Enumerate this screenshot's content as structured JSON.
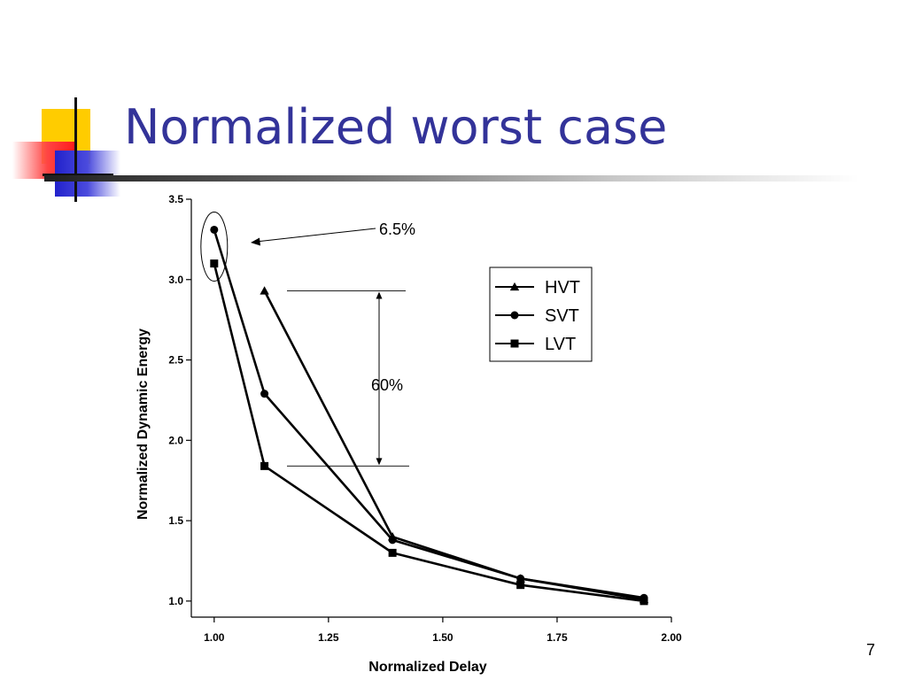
{
  "slide": {
    "title": "Normalized worst case",
    "page_number": "7"
  },
  "colors": {
    "title": "#333399",
    "deco_yellow": "#ffcc00",
    "deco_red": "#ff1a1a",
    "deco_blue": "#2222cc"
  },
  "chart_data": {
    "type": "line",
    "title": "",
    "xlabel": "Normalized Delay",
    "ylabel": "Normalized Dynamic Energy",
    "xlim": [
      0.95,
      2.0
    ],
    "ylim": [
      0.9,
      3.5
    ],
    "x_ticks": [
      "1.00",
      "1.25",
      "1.50",
      "1.75",
      "2.00"
    ],
    "y_ticks": [
      "1.0",
      "1.5",
      "2.0",
      "2.5",
      "3.0",
      "3.5"
    ],
    "grid": false,
    "legend_position": "top-right",
    "series": [
      {
        "name": "HVT",
        "marker": "triangle",
        "x": [
          1.11,
          1.39,
          1.67,
          1.94
        ],
        "y": [
          2.93,
          1.4,
          1.14,
          1.01
        ]
      },
      {
        "name": "SVT",
        "marker": "circle",
        "x": [
          1.0,
          1.11,
          1.39,
          1.67,
          1.94
        ],
        "y": [
          3.31,
          2.29,
          1.38,
          1.14,
          1.02
        ]
      },
      {
        "name": "LVT",
        "marker": "square",
        "x": [
          1.0,
          1.11,
          1.39,
          1.67,
          1.94
        ],
        "y": [
          3.1,
          1.84,
          1.3,
          1.1,
          1.0
        ]
      }
    ],
    "annotations": [
      {
        "label": "6.5%",
        "type": "ellipse-with-arrow",
        "x": 1.0,
        "y_range": [
          3.1,
          3.31
        ]
      },
      {
        "label": "60%",
        "type": "double-arrow",
        "x": 1.34,
        "y_range": [
          1.84,
          2.93
        ]
      }
    ]
  }
}
